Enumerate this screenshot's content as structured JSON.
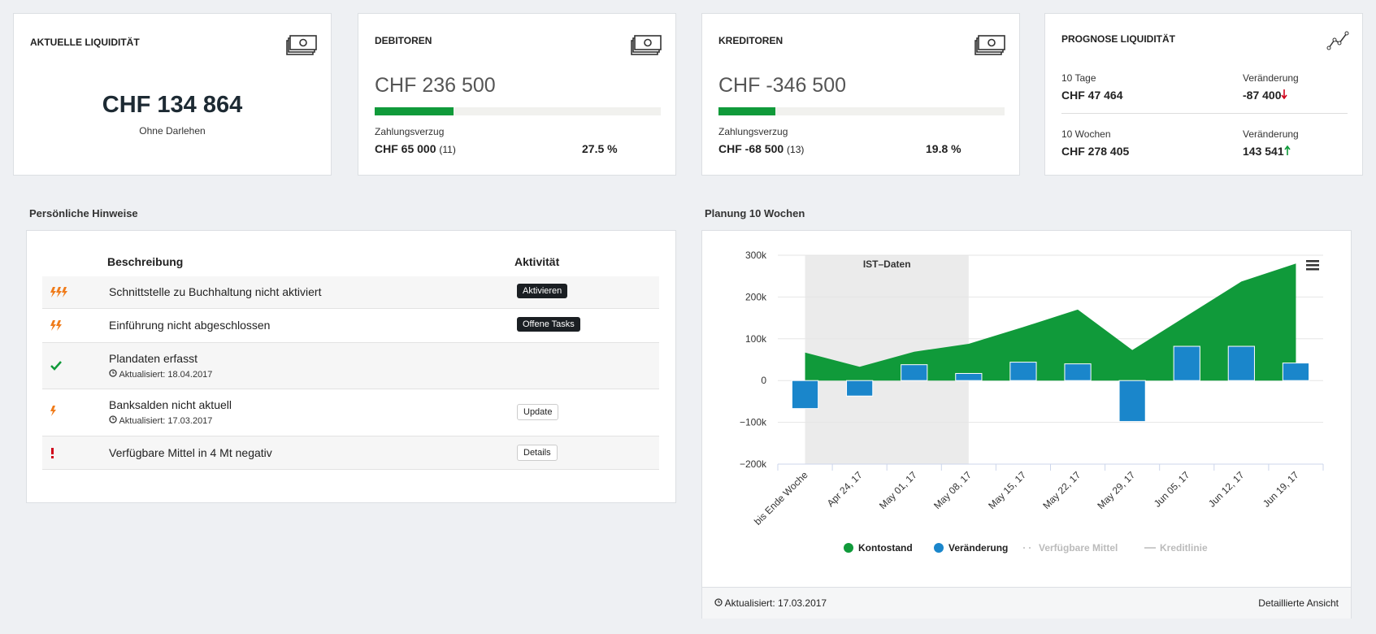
{
  "cards": [
    {
      "title": "AKTUELLE LIQUIDITÄT",
      "value": "CHF 134 864",
      "note": "Ohne Darlehen"
    },
    {
      "title": "DEBITOREN",
      "value": "CHF 236 500",
      "overdue_label": "Zahlungsverzug",
      "overdue": "CHF 65 000",
      "overdue_count": "(11)",
      "share": {
        "value": 27.5,
        "label": "27.5 %"
      },
      "color": "#109a3a"
    },
    {
      "title": "KREDITOREN",
      "value": "CHF -346 500",
      "overdue_label": "Zahlungsverzug",
      "overdue": "CHF -68 500",
      "overdue_count": "(13)",
      "share": {
        "value": 19.8,
        "label": "19.8 %"
      },
      "color": "#109a3a"
    },
    {
      "title": "PROGNOSE LIQUIDITÄT",
      "rows": [
        {
          "period": "10 Tage",
          "amount": "CHF 47 464",
          "change_label": "Veränderung",
          "change": "-87 400"
        },
        {
          "period": "10 Wochen",
          "amount": "CHF 278 405",
          "change_label": "Veränderung",
          "change": "143 541"
        }
      ]
    }
  ],
  "notes": {
    "title": "Persönliche Hinweise",
    "columns": [
      "Beschreibung",
      "Aktivität"
    ],
    "rows": [
      {
        "text": "Schnittstelle zu Buchhaltung nicht aktiviert",
        "action": "Aktivieren"
      },
      {
        "text": "Einführung nicht abgeschlossen",
        "action": "Offene Tasks"
      },
      {
        "text": "Plandaten erfasst",
        "updated": "Aktualisiert: 18.04.2017"
      },
      {
        "text": "Banksalden nicht aktuell",
        "updated": "Aktualisiert: 17.03.2017",
        "action": "Update"
      },
      {
        "text": "Verfügbare Mittel in 4 Mt negativ",
        "action": "Details"
      }
    ]
  },
  "chart_data": {
    "type": "combo",
    "title": "Planung 10 Wochen",
    "categories": [
      "bis Ende Woche",
      "Apr 24, 17",
      "May 01, 17",
      "May 08, 17",
      "May 15, 17",
      "May 22, 17",
      "May 29, 17",
      "Jun 05, 17",
      "Jun 12, 17",
      "Jun 19, 17"
    ],
    "series": [
      {
        "name": "Kontostand",
        "type": "area",
        "color": "#109a3a",
        "values": [
          67000,
          33000,
          69000,
          88000,
          128000,
          170000,
          73000,
          155000,
          237000,
          280000
        ]
      },
      {
        "name": "Veränderung",
        "type": "bar",
        "color": "#1a86cb",
        "values": [
          -67000,
          -37000,
          38000,
          17000,
          44000,
          40000,
          -98000,
          82000,
          82000,
          42000
        ]
      },
      {
        "name": "Verfügbare Mittel",
        "type": "line",
        "color": "#cccccc",
        "visible": false
      },
      {
        "name": "Kreditlinie",
        "type": "line",
        "color": "#cccccc",
        "visible": false
      }
    ],
    "ylim": [
      -200000,
      300000
    ],
    "yticks": [
      {
        "value": -200000,
        "label": "−200k"
      },
      {
        "value": -100000,
        "label": "−100k"
      },
      0,
      {
        "value": 100000,
        "label": "100k"
      },
      {
        "value": 200000,
        "label": "200k"
      },
      {
        "value": 300000,
        "label": "300k"
      }
    ],
    "grid": true,
    "plot_band": {
      "from": "bis Ende Woche",
      "to": "May 08, 17",
      "label": "IST–Daten",
      "color": "#ebebeb"
    },
    "footer": {
      "updated": "Aktualisiert: 17.03.2017",
      "link": "Detaillierte Ansicht"
    }
  }
}
